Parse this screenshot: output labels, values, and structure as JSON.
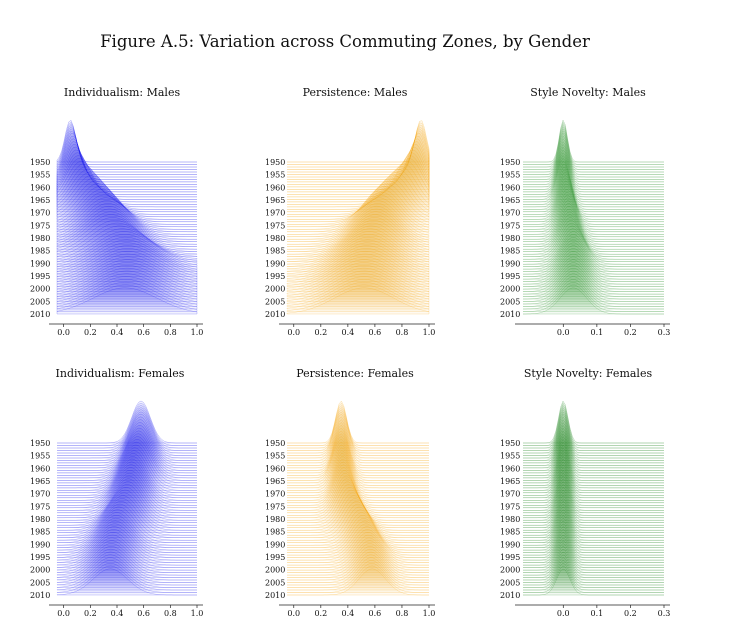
{
  "figure_title": "Figure A.5: Variation across Commuting Zones, by Gender",
  "chart_data": [
    {
      "type": "ridgeline",
      "title": "Individualism: Males",
      "color": "#1010ee",
      "years": [
        "1950",
        "1955",
        "1960",
        "1965",
        "1970",
        "1975",
        "1980",
        "1985",
        "1990",
        "1995",
        "2000",
        "2005",
        "2010"
      ],
      "xlim": [
        -0.05,
        1.0
      ],
      "xticks": [
        "0.0",
        "0.2",
        "0.4",
        "0.6",
        "0.8",
        "1.0"
      ],
      "xtick_values": [
        0.0,
        0.2,
        0.4,
        0.6,
        0.8,
        1.0
      ],
      "peak_center_by_year": [
        0.05,
        0.06,
        0.08,
        0.12,
        0.2,
        0.28,
        0.33,
        0.36,
        0.45,
        0.48,
        0.48,
        0.47,
        0.46
      ],
      "peak_width_by_year": [
        0.04,
        0.05,
        0.07,
        0.1,
        0.13,
        0.15,
        0.17,
        0.19,
        0.22,
        0.24,
        0.24,
        0.24,
        0.24
      ]
    },
    {
      "type": "ridgeline",
      "title": "Persistence: Males",
      "color": "#f5a30a",
      "years": [
        "1950",
        "1955",
        "1960",
        "1965",
        "1970",
        "1975",
        "1980",
        "1985",
        "1990",
        "1995",
        "2000",
        "2005",
        "2010"
      ],
      "xlim": [
        -0.05,
        1.0
      ],
      "xticks": [
        "0.0",
        "0.2",
        "0.4",
        "0.6",
        "0.8",
        "1.0"
      ],
      "xtick_values": [
        0.0,
        0.2,
        0.4,
        0.6,
        0.8,
        1.0
      ],
      "peak_center_by_year": [
        0.94,
        0.93,
        0.9,
        0.85,
        0.75,
        0.66,
        0.62,
        0.6,
        0.56,
        0.54,
        0.52,
        0.52,
        0.52
      ],
      "peak_width_by_year": [
        0.04,
        0.05,
        0.07,
        0.1,
        0.12,
        0.14,
        0.15,
        0.17,
        0.19,
        0.21,
        0.22,
        0.22,
        0.22
      ]
    },
    {
      "type": "ridgeline",
      "title": "Style Novelty: Males",
      "color": "#1f8a1f",
      "years": [
        "1950",
        "1955",
        "1960",
        "1965",
        "1970",
        "1975",
        "1980",
        "1985",
        "1990",
        "1995",
        "2000",
        "2005",
        "2010"
      ],
      "xlim": [
        -0.12,
        0.3
      ],
      "xticks": [
        "0.0",
        "0.1",
        "0.2",
        "0.3"
      ],
      "xtick_values": [
        0.0,
        0.1,
        0.2,
        0.3
      ],
      "peak_center_by_year": [
        0.0,
        0.0,
        0.0,
        0.0,
        0.005,
        0.01,
        0.015,
        0.02,
        0.03,
        0.03,
        0.03,
        0.03,
        0.03
      ],
      "peak_width_by_year": [
        0.012,
        0.014,
        0.016,
        0.018,
        0.02,
        0.024,
        0.026,
        0.03,
        0.035,
        0.038,
        0.04,
        0.04,
        0.04
      ]
    },
    {
      "type": "ridgeline",
      "title": "Individualism: Females",
      "color": "#1010ee",
      "years": [
        "1950",
        "1955",
        "1960",
        "1965",
        "1970",
        "1975",
        "1980",
        "1985",
        "1990",
        "1995",
        "2000",
        "2005",
        "2010"
      ],
      "xlim": [
        -0.05,
        1.0
      ],
      "xticks": [
        "0.0",
        "0.2",
        "0.4",
        "0.6",
        "0.8",
        "1.0"
      ],
      "xtick_values": [
        0.0,
        0.2,
        0.4,
        0.6,
        0.8,
        1.0
      ],
      "peak_center_by_year": [
        0.58,
        0.58,
        0.57,
        0.55,
        0.52,
        0.5,
        0.48,
        0.44,
        0.4,
        0.38,
        0.36,
        0.35,
        0.35
      ],
      "peak_width_by_year": [
        0.07,
        0.08,
        0.09,
        0.1,
        0.1,
        0.11,
        0.11,
        0.12,
        0.12,
        0.13,
        0.13,
        0.13,
        0.13
      ]
    },
    {
      "type": "ridgeline",
      "title": "Persistence: Females",
      "color": "#f5a30a",
      "years": [
        "1950",
        "1955",
        "1960",
        "1965",
        "1970",
        "1975",
        "1980",
        "1985",
        "1990",
        "1995",
        "2000",
        "2005",
        "2010"
      ],
      "xlim": [
        -0.05,
        1.0
      ],
      "xticks": [
        "0.0",
        "0.2",
        "0.4",
        "0.6",
        "0.8",
        "1.0"
      ],
      "xtick_values": [
        0.0,
        0.2,
        0.4,
        0.6,
        0.8,
        1.0
      ],
      "peak_center_by_year": [
        0.35,
        0.35,
        0.35,
        0.35,
        0.36,
        0.37,
        0.4,
        0.45,
        0.5,
        0.54,
        0.56,
        0.57,
        0.58
      ],
      "peak_width_by_year": [
        0.04,
        0.05,
        0.05,
        0.06,
        0.06,
        0.07,
        0.08,
        0.09,
        0.09,
        0.1,
        0.1,
        0.1,
        0.1
      ]
    },
    {
      "type": "ridgeline",
      "title": "Style Novelty: Females",
      "color": "#0b7a0b",
      "years": [
        "1950",
        "1955",
        "1960",
        "1965",
        "1970",
        "1975",
        "1980",
        "1985",
        "1990",
        "1995",
        "2000",
        "2005",
        "2010"
      ],
      "xlim": [
        -0.12,
        0.3
      ],
      "xticks": [
        "0.0",
        "0.1",
        "0.2",
        "0.3"
      ],
      "xtick_values": [
        0.0,
        0.1,
        0.2,
        0.3
      ],
      "peak_center_by_year": [
        0.0,
        0.0,
        0.0,
        0.0,
        0.0,
        0.0,
        0.0,
        0.0,
        0.0,
        0.0,
        0.0,
        0.0,
        0.0
      ],
      "peak_width_by_year": [
        0.014,
        0.015,
        0.016,
        0.016,
        0.017,
        0.017,
        0.018,
        0.018,
        0.019,
        0.019,
        0.02,
        0.02,
        0.02
      ]
    }
  ]
}
